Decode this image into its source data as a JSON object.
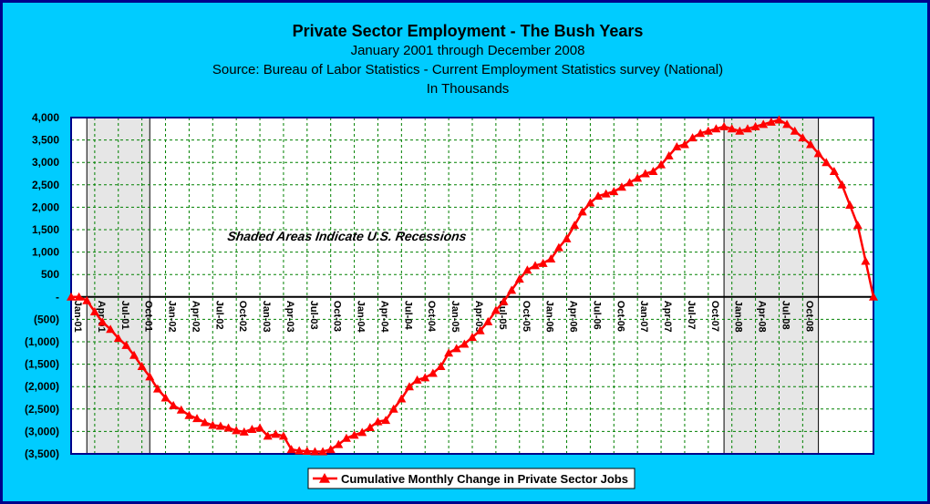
{
  "chart_data": {
    "type": "line",
    "title": "Private Sector Employment - The Bush Years",
    "subtitle_lines": [
      "January 2001 through December 2008",
      "Source: Bureau of Labor Statistics - Current Employment Statistics survey (National)",
      "In Thousands"
    ],
    "xlabel": "",
    "ylabel": "",
    "ylim": [
      -3500,
      4000
    ],
    "y_ticks": [
      {
        "value": 4000,
        "label": "4,000"
      },
      {
        "value": 3500,
        "label": "3,500"
      },
      {
        "value": 3000,
        "label": "3,000"
      },
      {
        "value": 2500,
        "label": "2,500"
      },
      {
        "value": 2000,
        "label": "2,000"
      },
      {
        "value": 1500,
        "label": "1,500"
      },
      {
        "value": 1000,
        "label": "1,000"
      },
      {
        "value": 500,
        "label": "500"
      },
      {
        "value": 0,
        "label": "-"
      },
      {
        "value": -500,
        "label": "(500)"
      },
      {
        "value": -1000,
        "label": "(1,000)"
      },
      {
        "value": -1500,
        "label": "(1,500)"
      },
      {
        "value": -2000,
        "label": "(2,000)"
      },
      {
        "value": -2500,
        "label": "(2,500)"
      },
      {
        "value": -3000,
        "label": "(3,000)"
      },
      {
        "value": -3500,
        "label": "(3,500)"
      }
    ],
    "x_tick_labels": [
      "Jan-01",
      "Apr-01",
      "Jul-01",
      "Oct-01",
      "Jan-02",
      "Apr-02",
      "Jul-02",
      "Oct-02",
      "Jan-03",
      "Apr-03",
      "Jul-03",
      "Oct-03",
      "Jan-04",
      "Apr-04",
      "Jul-04",
      "Oct-04",
      "Jan-05",
      "Apr-05",
      "Jul-05",
      "Oct-05",
      "Jan-06",
      "Apr-06",
      "Jul-06",
      "Oct-06",
      "Jan-07",
      "Apr-07",
      "Jul-07",
      "Oct-07",
      "Jan-08",
      "Apr-08",
      "Jul-08",
      "Oct-08"
    ],
    "x_start": "Jan-01",
    "x_end": "Dec-08",
    "grid": true,
    "legend": "bottom-center",
    "annotation": "Shaded Areas Indicate U.S. Recessions",
    "recessions": [
      {
        "start": "Mar-01",
        "end": "Nov-01"
      },
      {
        "start": "Dec-07",
        "end": "Dec-08"
      }
    ],
    "series": [
      {
        "name": "Cumulative Monthly Change in Private Sector Jobs",
        "color": "#ff0000",
        "marker": "triangle",
        "values": [
          0,
          0,
          -80,
          -330,
          -560,
          -720,
          -920,
          -1080,
          -1300,
          -1550,
          -1780,
          -2050,
          -2250,
          -2420,
          -2520,
          -2640,
          -2710,
          -2800,
          -2860,
          -2880,
          -2920,
          -2980,
          -3010,
          -2950,
          -2920,
          -3100,
          -3060,
          -3100,
          -3400,
          -3430,
          -3440,
          -3450,
          -3450,
          -3400,
          -3290,
          -3150,
          -3080,
          -3020,
          -2910,
          -2780,
          -2750,
          -2500,
          -2270,
          -2000,
          -1850,
          -1800,
          -1700,
          -1550,
          -1250,
          -1150,
          -1050,
          -900,
          -750,
          -550,
          -300,
          -100,
          150,
          400,
          600,
          700,
          750,
          850,
          1100,
          1300,
          1600,
          1900,
          2100,
          2250,
          2300,
          2350,
          2450,
          2550,
          2650,
          2750,
          2800,
          2950,
          3150,
          3350,
          3400,
          3550,
          3650,
          3700,
          3750,
          3800,
          3750,
          3700,
          3750,
          3800,
          3850,
          3900,
          3950,
          3850,
          3700,
          3550,
          3400,
          3200,
          3000,
          2800,
          2500,
          2050,
          1600,
          800,
          0
        ]
      }
    ]
  }
}
